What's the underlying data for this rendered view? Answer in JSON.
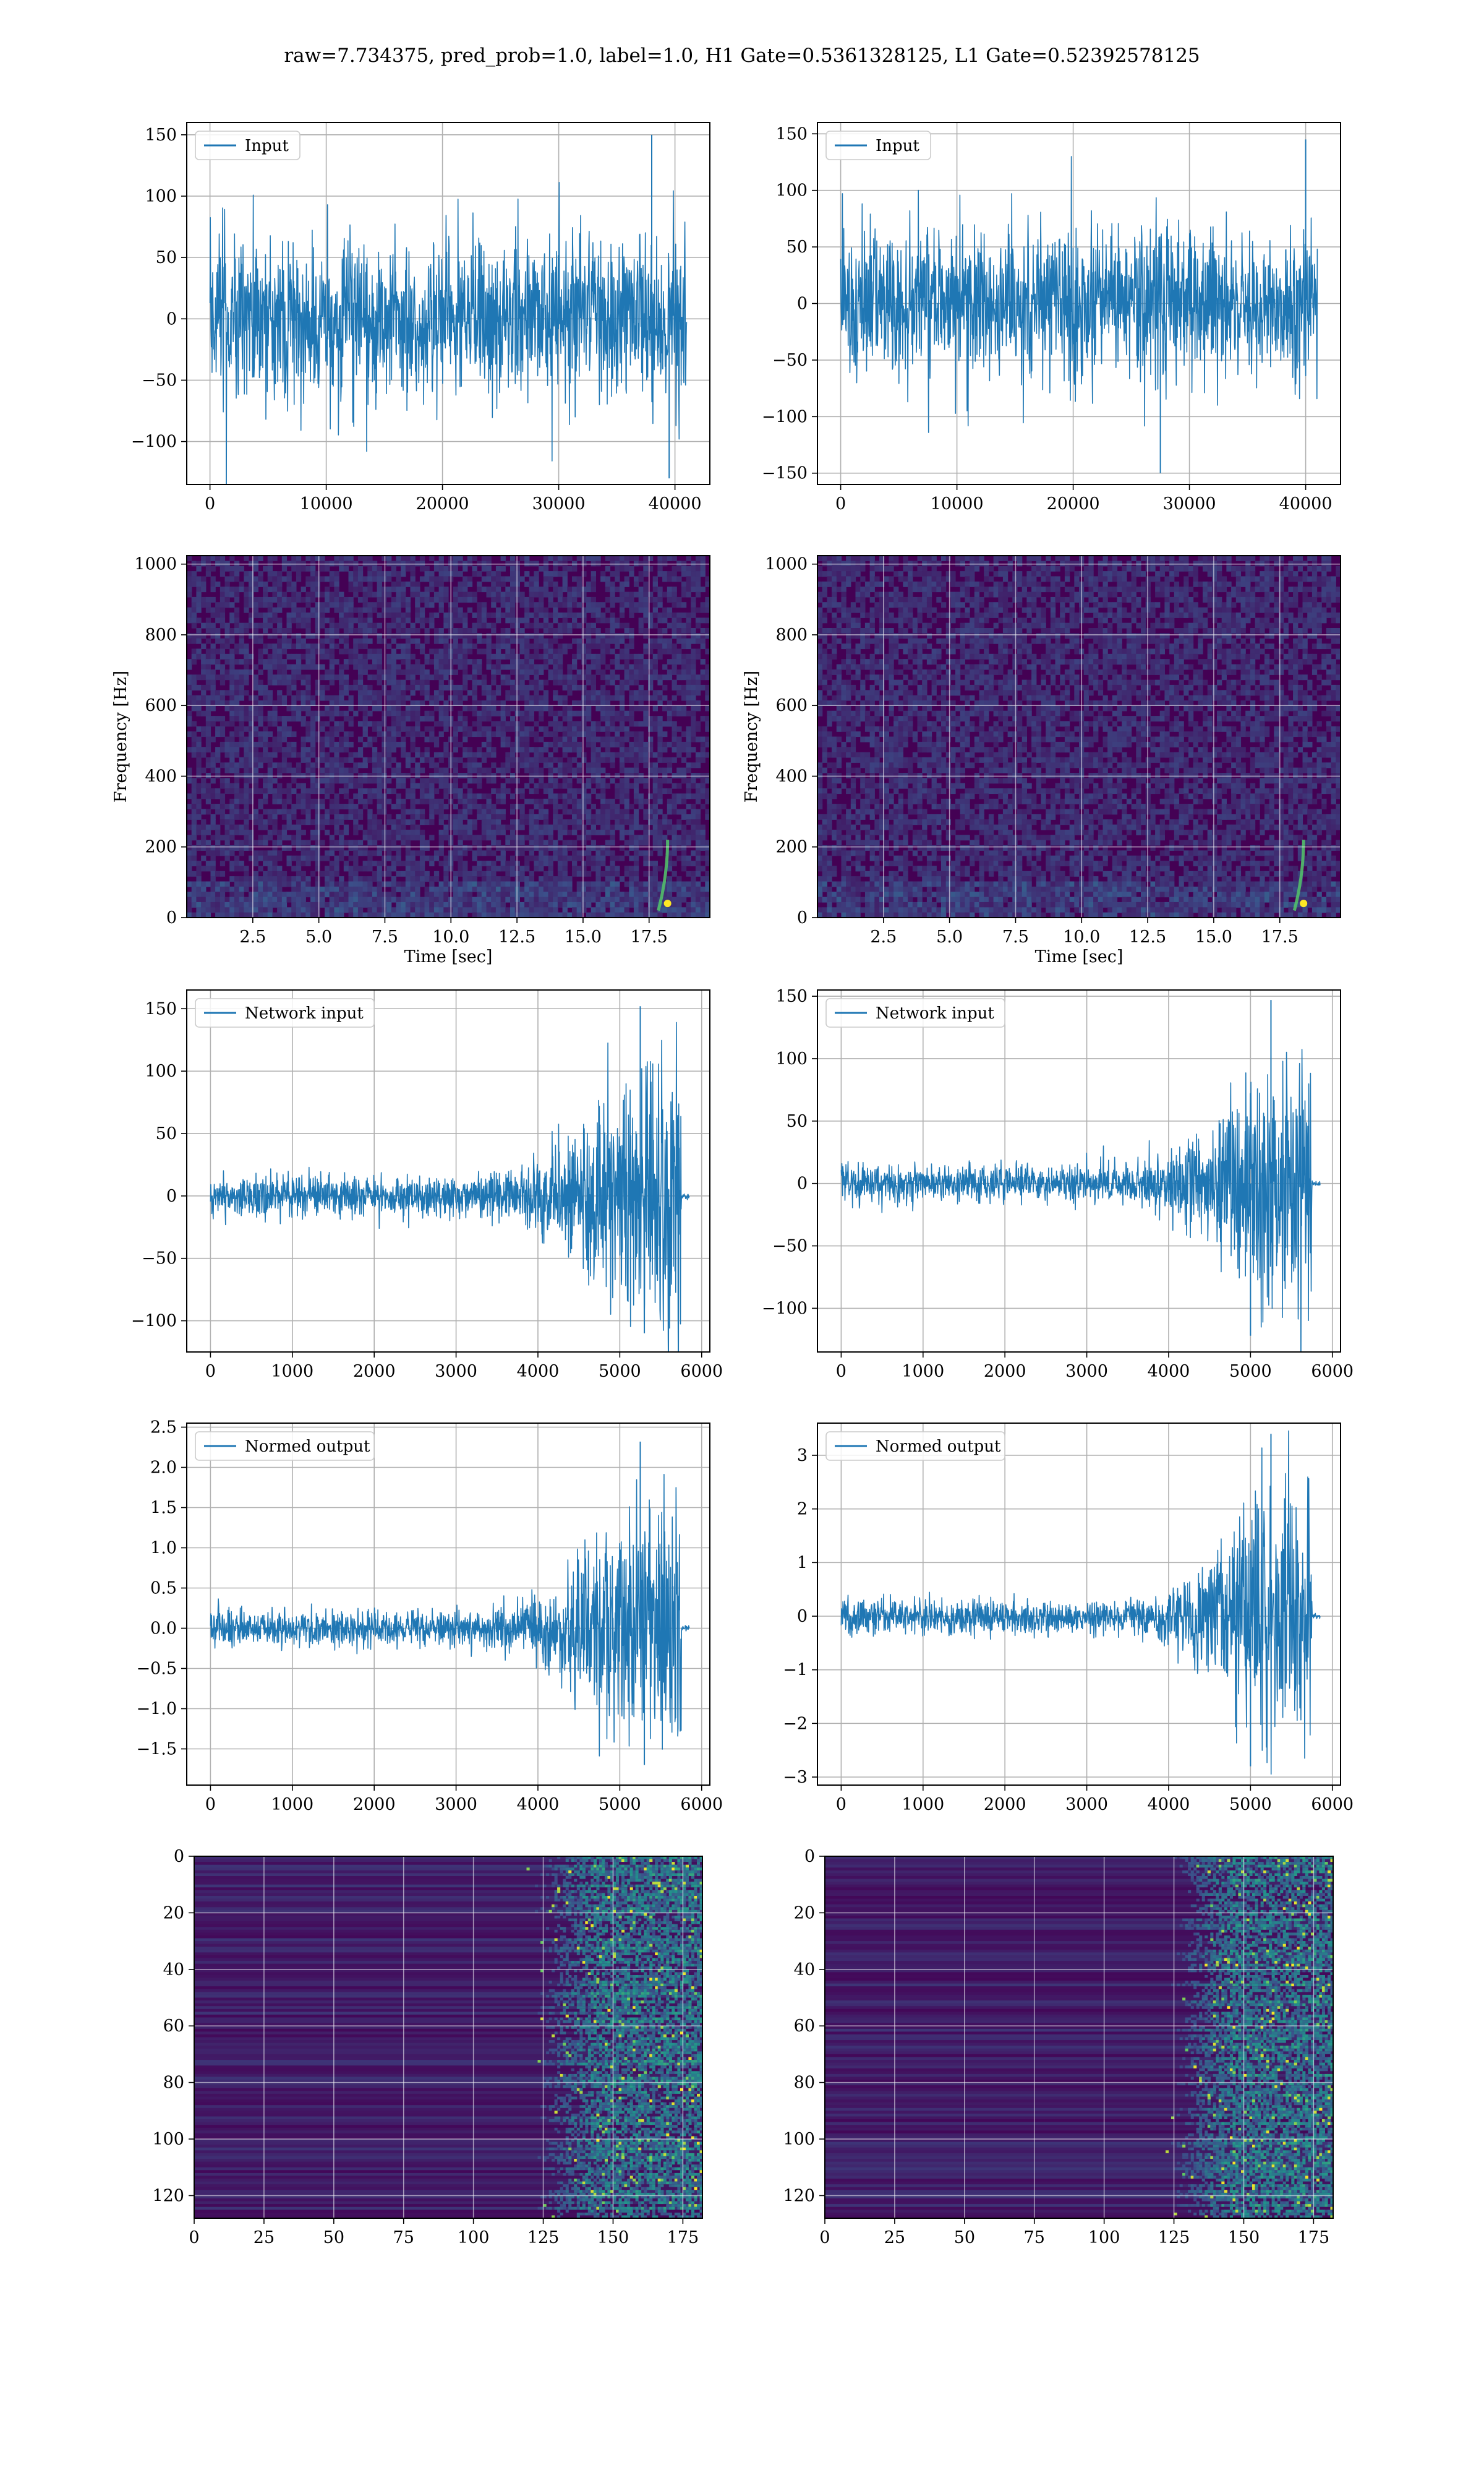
{
  "figure": {
    "title": "raw=7.734375, pred_prob=1.0, label=1.0, H1 Gate=0.5361328125, L1 Gate=0.52392578125"
  },
  "colors": {
    "series": "#1f77b4",
    "grid": "#b0b0b0",
    "axes": "#000000",
    "heatmap_low": "#440154",
    "heatmap_mid": "#21918c",
    "heatmap_high": "#fde725"
  },
  "chart_data": [
    {
      "id": "input_h1",
      "type": "line",
      "title": "",
      "legend": "Input",
      "legend_position": "top-left",
      "grid": true,
      "xlim": [
        -2000,
        43000
      ],
      "ylim": [
        -135,
        160
      ],
      "xticks": [
        0,
        10000,
        20000,
        30000,
        40000
      ],
      "yticks": [
        -100,
        -50,
        0,
        50,
        100,
        150
      ],
      "xlabel": "",
      "ylabel": "",
      "signal": {
        "kind": "noise",
        "n": 41000,
        "sigma": 30,
        "spikes": [
          [
            38000,
            150
          ],
          [
            39500,
            -130
          ]
        ]
      }
    },
    {
      "id": "input_l1",
      "type": "line",
      "title": "",
      "legend": "Input",
      "legend_position": "top-left",
      "grid": true,
      "xlim": [
        -2000,
        43000
      ],
      "ylim": [
        -160,
        160
      ],
      "xticks": [
        0,
        10000,
        20000,
        30000,
        40000
      ],
      "yticks": [
        -150,
        -100,
        -50,
        0,
        50,
        100,
        150
      ],
      "xlabel": "",
      "ylabel": "",
      "signal": {
        "kind": "noise",
        "n": 41000,
        "sigma": 30,
        "spikes": [
          [
            27500,
            -150
          ],
          [
            40000,
            145
          ]
        ]
      }
    },
    {
      "id": "spectrogram_h1",
      "type": "heatmap",
      "title": "",
      "xlabel": "Time [sec]",
      "ylabel": "Frequency [Hz]",
      "grid": true,
      "xlim": [
        0,
        19.8
      ],
      "ylim": [
        0,
        1024
      ],
      "xticks": [
        2.5,
        5.0,
        7.5,
        10.0,
        12.5,
        15.0,
        17.5
      ],
      "xtick_labels": [
        "2.5",
        "5.0",
        "7.5",
        "10.0",
        "12.5",
        "15.0",
        "17.5"
      ],
      "yticks": [
        0,
        200,
        400,
        600,
        800,
        1000
      ],
      "chirp_time": 18.2
    },
    {
      "id": "spectrogram_l1",
      "type": "heatmap",
      "title": "",
      "xlabel": "Time [sec]",
      "ylabel": "Frequency [Hz]",
      "grid": true,
      "xlim": [
        0,
        19.8
      ],
      "ylim": [
        0,
        1024
      ],
      "xticks": [
        2.5,
        5.0,
        7.5,
        10.0,
        12.5,
        15.0,
        17.5
      ],
      "xtick_labels": [
        "2.5",
        "5.0",
        "7.5",
        "10.0",
        "12.5",
        "15.0",
        "17.5"
      ],
      "yticks": [
        0,
        200,
        400,
        600,
        800,
        1000
      ],
      "chirp_time": 18.4
    },
    {
      "id": "network_input_h1",
      "type": "line",
      "title": "",
      "legend": "Network input",
      "legend_position": "top-left",
      "grid": true,
      "xlim": [
        -290,
        6100
      ],
      "ylim": [
        -125,
        165
      ],
      "xticks": [
        0,
        1000,
        2000,
        3000,
        4000,
        5000,
        6000
      ],
      "yticks": [
        -100,
        -50,
        0,
        50,
        100,
        150
      ],
      "xlabel": "",
      "ylabel": "",
      "signal": {
        "kind": "chirp",
        "n": 5850,
        "base": 10,
        "peak": 75,
        "start": 3200,
        "peak_at": 5250,
        "end": 5750,
        "spikes": [
          [
            5250,
            152
          ],
          [
            5300,
            -110
          ]
        ]
      }
    },
    {
      "id": "network_input_l1",
      "type": "line",
      "title": "",
      "legend": "Network input",
      "legend_position": "top-left",
      "grid": true,
      "xlim": [
        -290,
        6100
      ],
      "ylim": [
        -135,
        155
      ],
      "xticks": [
        0,
        1000,
        2000,
        3000,
        4000,
        5000,
        6000
      ],
      "yticks": [
        -100,
        -50,
        0,
        50,
        100,
        150
      ],
      "xlabel": "",
      "ylabel": "",
      "signal": {
        "kind": "chirp",
        "n": 5850,
        "base": 9,
        "peak": 65,
        "start": 3300,
        "peak_at": 5150,
        "end": 5750,
        "spikes": [
          [
            5250,
            147
          ],
          [
            5000,
            -122
          ]
        ]
      }
    },
    {
      "id": "normed_output_h1",
      "type": "line",
      "title": "",
      "legend": "Normed output",
      "legend_position": "top-left",
      "grid": true,
      "xlim": [
        -290,
        6100
      ],
      "ylim": [
        -1.95,
        2.55
      ],
      "xticks": [
        0,
        1000,
        2000,
        3000,
        4000,
        5000,
        6000
      ],
      "yticks": [
        -1.5,
        -1.0,
        -0.5,
        0.0,
        0.5,
        1.0,
        1.5,
        2.0,
        2.5
      ],
      "ytick_labels": [
        "−1.5",
        "−1.0",
        "−0.5",
        "0.0",
        "0.5",
        "1.0",
        "1.5",
        "2.0",
        "2.5"
      ],
      "xlabel": "",
      "ylabel": "",
      "signal": {
        "kind": "chirp",
        "n": 5850,
        "base": 0.13,
        "peak": 1.05,
        "start": 3200,
        "peak_at": 5250,
        "end": 5750,
        "spikes": [
          [
            5250,
            2.32
          ],
          [
            5300,
            -1.7
          ]
        ]
      }
    },
    {
      "id": "normed_output_l1",
      "type": "line",
      "title": "",
      "legend": "Normed output",
      "legend_position": "top-left",
      "grid": true,
      "xlim": [
        -290,
        6100
      ],
      "ylim": [
        -3.15,
        3.6
      ],
      "xticks": [
        0,
        1000,
        2000,
        3000,
        4000,
        5000,
        6000
      ],
      "yticks": [
        -3,
        -2,
        -1,
        0,
        1,
        2,
        3
      ],
      "ytick_labels": [
        "−3",
        "−2",
        "−1",
        "0",
        "1",
        "2",
        "3"
      ],
      "xlabel": "",
      "ylabel": "",
      "signal": {
        "kind": "chirp",
        "n": 5850,
        "base": 0.2,
        "peak": 1.5,
        "start": 3300,
        "peak_at": 5150,
        "end": 5750,
        "spikes": [
          [
            5250,
            3.4
          ],
          [
            5000,
            -2.8
          ]
        ]
      }
    },
    {
      "id": "feature_map_h1",
      "type": "heatmap",
      "title": "",
      "xlabel": "",
      "ylabel": "",
      "grid": true,
      "xlim": [
        0,
        182
      ],
      "ylim": [
        128,
        0
      ],
      "xticks": [
        0,
        25,
        50,
        75,
        100,
        125,
        150,
        175
      ],
      "yticks": [
        0,
        20,
        40,
        60,
        80,
        100,
        120
      ],
      "active_from": 118
    },
    {
      "id": "feature_map_l1",
      "type": "heatmap",
      "title": "",
      "xlabel": "",
      "ylabel": "",
      "grid": true,
      "xlim": [
        0,
        182
      ],
      "ylim": [
        128,
        0
      ],
      "xticks": [
        0,
        25,
        50,
        75,
        100,
        125,
        150,
        175
      ],
      "yticks": [
        0,
        20,
        40,
        60,
        80,
        100,
        120
      ],
      "active_from": 120
    }
  ]
}
